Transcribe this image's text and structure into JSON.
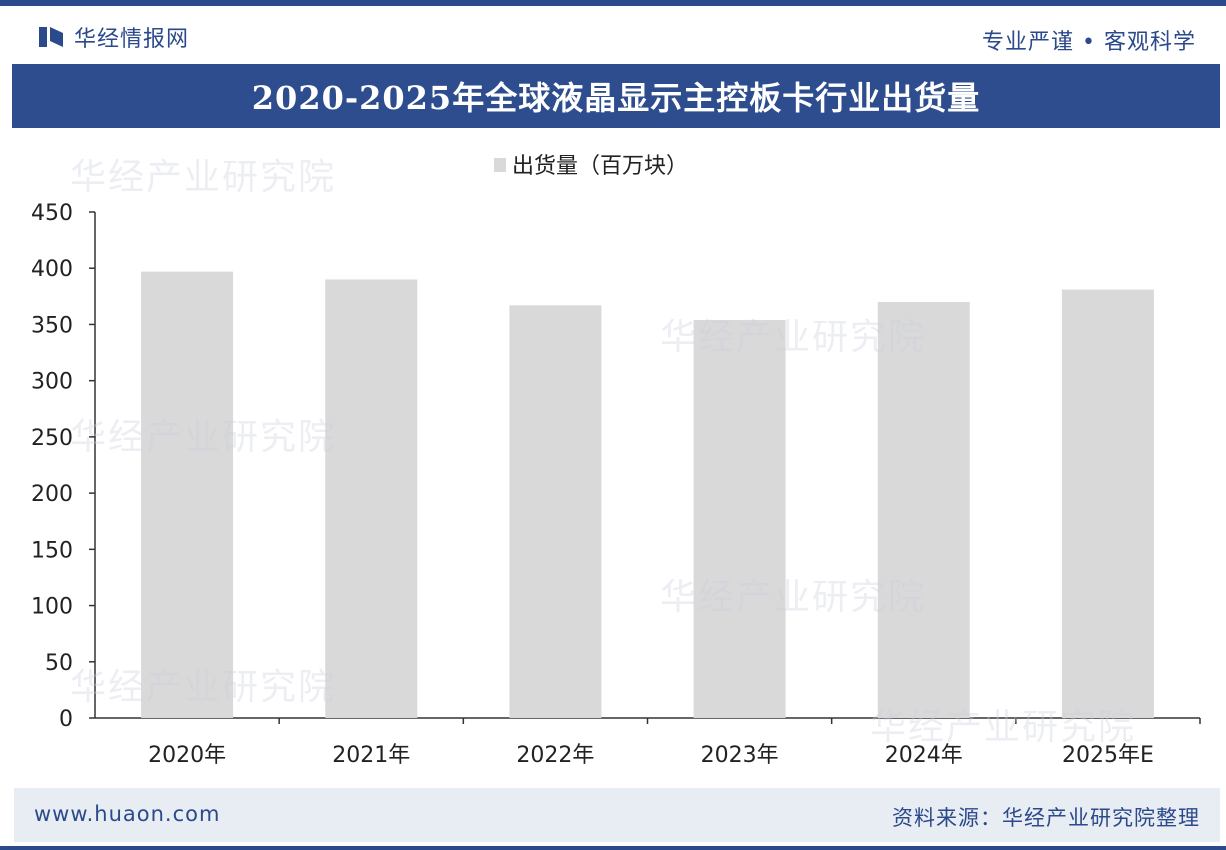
{
  "header": {
    "brand": "华经情报网",
    "slogan": "专业严谨 • 客观科学"
  },
  "title": "2020-2025年全球液晶显示主控板卡行业出货量",
  "footer": {
    "url": "www.huaon.com",
    "source": "资料来源：华经产业研究院整理"
  },
  "watermark": "华经产业研究院",
  "colors": {
    "brand": "#2e4d8f",
    "bar": "#d9d9d9",
    "axis": "#333333"
  },
  "chart_data": {
    "type": "bar",
    "categories": [
      "2020年",
      "2021年",
      "2022年",
      "2023年",
      "2024年",
      "2025年E"
    ],
    "series": [
      {
        "name": "出货量（百万块）",
        "values": [
          397,
          390,
          367,
          354,
          370,
          381
        ]
      }
    ],
    "ylim": [
      0,
      450
    ],
    "yticks": [
      0,
      50,
      100,
      150,
      200,
      250,
      300,
      350,
      400,
      450
    ],
    "legend_position": "top-center",
    "grid": false
  }
}
